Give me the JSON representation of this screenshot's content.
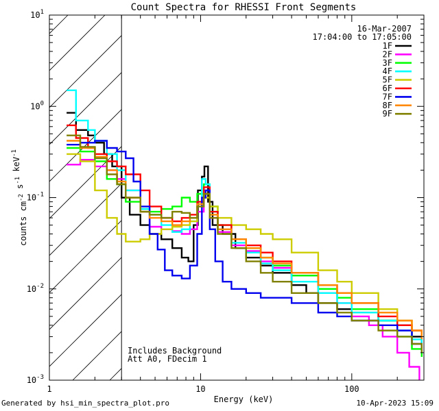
{
  "chart_data": {
    "type": "line",
    "title": "Count Spectra for RHESSI Front Segments",
    "xlabel": "Energy (keV)",
    "ylabel": "counts cm-2 s-1 keV-1",
    "xscale": "log",
    "yscale": "log",
    "xlim": [
      1,
      300
    ],
    "ylim": [
      0.001,
      10
    ],
    "x_ticks": [
      {
        "value": 1,
        "label": "1"
      },
      {
        "value": 10,
        "label": "10"
      },
      {
        "value": 100,
        "label": "100"
      }
    ],
    "y_ticks": [
      {
        "value": 0.001,
        "mantissa": "10",
        "exp": "-3"
      },
      {
        "value": 0.01,
        "mantissa": "10",
        "exp": "-2"
      },
      {
        "value": 0.1,
        "mantissa": "10",
        "exp": "-1"
      },
      {
        "value": 1,
        "mantissa": "10",
        "exp": "0"
      },
      {
        "value": 10,
        "mantissa": "10",
        "exp": "1"
      }
    ],
    "date_label": "16-Mar-2007",
    "time_range_label": "17:04:00 to 17:05:00",
    "annotation_lines": [
      "Includes Background",
      "Att A0, FDecim 1"
    ],
    "hatched_region_max_energy": 3,
    "series": [
      {
        "name": "1F",
        "color": "#000000",
        "points": [
          [
            1.3,
            0.85
          ],
          [
            1.5,
            0.55
          ],
          [
            1.8,
            0.48
          ],
          [
            2,
            0.4
          ],
          [
            2.3,
            0.3
          ],
          [
            2.6,
            0.22
          ],
          [
            3,
            0.1
          ],
          [
            3.4,
            0.065
          ],
          [
            4,
            0.05
          ],
          [
            4.6,
            0.04
          ],
          [
            5.5,
            0.035
          ],
          [
            6.5,
            0.028
          ],
          [
            7.5,
            0.022
          ],
          [
            8.3,
            0.02
          ],
          [
            9,
            0.05
          ],
          [
            9.6,
            0.12
          ],
          [
            10.2,
            0.17
          ],
          [
            10.6,
            0.22
          ],
          [
            11.2,
            0.09
          ],
          [
            12,
            0.05
          ],
          [
            14,
            0.04
          ],
          [
            17,
            0.028
          ],
          [
            20,
            0.022
          ],
          [
            25,
            0.018
          ],
          [
            30,
            0.015
          ],
          [
            40,
            0.011
          ],
          [
            50,
            0.009
          ],
          [
            60,
            0.007
          ],
          [
            80,
            0.006
          ],
          [
            100,
            0.0055
          ],
          [
            150,
            0.0045
          ],
          [
            200,
            0.004
          ],
          [
            250,
            0.003
          ],
          [
            290,
            0.0025
          ]
        ]
      },
      {
        "name": "2F",
        "color": "#ff00ff",
        "points": [
          [
            1.3,
            0.23
          ],
          [
            1.6,
            0.26
          ],
          [
            2,
            0.22
          ],
          [
            2.4,
            0.2
          ],
          [
            2.8,
            0.16
          ],
          [
            3.2,
            0.12
          ],
          [
            4,
            0.07
          ],
          [
            4.6,
            0.048
          ],
          [
            5.5,
            0.045
          ],
          [
            6.5,
            0.043
          ],
          [
            7.5,
            0.04
          ],
          [
            8.5,
            0.045
          ],
          [
            9.5,
            0.07
          ],
          [
            10.5,
            0.12
          ],
          [
            11.5,
            0.06
          ],
          [
            13,
            0.042
          ],
          [
            16,
            0.03
          ],
          [
            20,
            0.026
          ],
          [
            25,
            0.02
          ],
          [
            30,
            0.017
          ],
          [
            40,
            0.014
          ],
          [
            60,
            0.009
          ],
          [
            80,
            0.007
          ],
          [
            100,
            0.005
          ],
          [
            130,
            0.004
          ],
          [
            160,
            0.003
          ],
          [
            200,
            0.002
          ],
          [
            240,
            0.0014
          ],
          [
            280,
            0.001
          ]
        ]
      },
      {
        "name": "3F",
        "color": "#00ff00",
        "points": [
          [
            1.3,
            0.35
          ],
          [
            1.6,
            0.32
          ],
          [
            2,
            0.25
          ],
          [
            2.4,
            0.16
          ],
          [
            2.8,
            0.14
          ],
          [
            3.2,
            0.09
          ],
          [
            4,
            0.075
          ],
          [
            4.6,
            0.07
          ],
          [
            5.5,
            0.075
          ],
          [
            6.5,
            0.08
          ],
          [
            7.5,
            0.1
          ],
          [
            8.5,
            0.09
          ],
          [
            9.5,
            0.11
          ],
          [
            10.5,
            0.14
          ],
          [
            11.5,
            0.08
          ],
          [
            13,
            0.05
          ],
          [
            16,
            0.035
          ],
          [
            20,
            0.028
          ],
          [
            25,
            0.022
          ],
          [
            30,
            0.018
          ],
          [
            40,
            0.014
          ],
          [
            60,
            0.01
          ],
          [
            80,
            0.008
          ],
          [
            100,
            0.006
          ],
          [
            150,
            0.0045
          ],
          [
            200,
            0.003
          ],
          [
            250,
            0.0022
          ],
          [
            290,
            0.0018
          ]
        ]
      },
      {
        "name": "4F",
        "color": "#00ffff",
        "points": [
          [
            1.3,
            1.5
          ],
          [
            1.5,
            0.7
          ],
          [
            1.8,
            0.55
          ],
          [
            2,
            0.42
          ],
          [
            2.4,
            0.3
          ],
          [
            2.8,
            0.2
          ],
          [
            3.2,
            0.12
          ],
          [
            4,
            0.075
          ],
          [
            4.6,
            0.065
          ],
          [
            5.5,
            0.05
          ],
          [
            6.5,
            0.042
          ],
          [
            7.5,
            0.045
          ],
          [
            8.5,
            0.055
          ],
          [
            9.5,
            0.09
          ],
          [
            10.2,
            0.16
          ],
          [
            10.8,
            0.14
          ],
          [
            11.5,
            0.07
          ],
          [
            13,
            0.045
          ],
          [
            16,
            0.032
          ],
          [
            20,
            0.025
          ],
          [
            25,
            0.019
          ],
          [
            30,
            0.016
          ],
          [
            40,
            0.012
          ],
          [
            60,
            0.009
          ],
          [
            80,
            0.007
          ],
          [
            100,
            0.0055
          ],
          [
            150,
            0.0045
          ],
          [
            200,
            0.0035
          ],
          [
            250,
            0.0028
          ],
          [
            290,
            0.0022
          ]
        ]
      },
      {
        "name": "5F",
        "color": "#cccc00",
        "points": [
          [
            1.3,
            0.3
          ],
          [
            1.6,
            0.25
          ],
          [
            2,
            0.12
          ],
          [
            2.4,
            0.06
          ],
          [
            2.8,
            0.04
          ],
          [
            3.2,
            0.033
          ],
          [
            4,
            0.035
          ],
          [
            4.6,
            0.04
          ],
          [
            5.5,
            0.045
          ],
          [
            6.5,
            0.048
          ],
          [
            7.5,
            0.05
          ],
          [
            8.5,
            0.055
          ],
          [
            9.5,
            0.08
          ],
          [
            10.5,
            0.1
          ],
          [
            11.5,
            0.08
          ],
          [
            13,
            0.06
          ],
          [
            16,
            0.05
          ],
          [
            20,
            0.045
          ],
          [
            25,
            0.04
          ],
          [
            30,
            0.035
          ],
          [
            40,
            0.025
          ],
          [
            60,
            0.016
          ],
          [
            80,
            0.012
          ],
          [
            100,
            0.009
          ],
          [
            150,
            0.006
          ],
          [
            200,
            0.0045
          ],
          [
            250,
            0.0035
          ],
          [
            290,
            0.003
          ]
        ]
      },
      {
        "name": "6F",
        "color": "#ff0000",
        "points": [
          [
            1.3,
            0.62
          ],
          [
            1.5,
            0.45
          ],
          [
            1.8,
            0.35
          ],
          [
            2,
            0.3
          ],
          [
            2.4,
            0.25
          ],
          [
            2.8,
            0.22
          ],
          [
            3.2,
            0.18
          ],
          [
            4,
            0.12
          ],
          [
            4.6,
            0.08
          ],
          [
            5.5,
            0.06
          ],
          [
            6.5,
            0.055
          ],
          [
            7.5,
            0.06
          ],
          [
            8.5,
            0.065
          ],
          [
            9.5,
            0.09
          ],
          [
            10.5,
            0.13
          ],
          [
            11.5,
            0.07
          ],
          [
            13,
            0.05
          ],
          [
            16,
            0.035
          ],
          [
            20,
            0.03
          ],
          [
            25,
            0.025
          ],
          [
            30,
            0.02
          ],
          [
            40,
            0.015
          ],
          [
            60,
            0.011
          ],
          [
            80,
            0.009
          ],
          [
            100,
            0.007
          ],
          [
            150,
            0.005
          ],
          [
            200,
            0.004
          ],
          [
            250,
            0.0035
          ],
          [
            290,
            0.003
          ]
        ]
      },
      {
        "name": "7F",
        "color": "#0000ee",
        "points": [
          [
            1.3,
            0.38
          ],
          [
            1.6,
            0.4
          ],
          [
            2,
            0.42
          ],
          [
            2.4,
            0.35
          ],
          [
            2.8,
            0.32
          ],
          [
            3.2,
            0.27
          ],
          [
            3.6,
            0.15
          ],
          [
            4,
            0.08
          ],
          [
            4.6,
            0.04
          ],
          [
            5.2,
            0.027
          ],
          [
            5.8,
            0.016
          ],
          [
            6.5,
            0.014
          ],
          [
            7.5,
            0.013
          ],
          [
            8.5,
            0.018
          ],
          [
            9.5,
            0.04
          ],
          [
            10.2,
            0.1
          ],
          [
            10.8,
            0.12
          ],
          [
            11.5,
            0.045
          ],
          [
            12.5,
            0.02
          ],
          [
            14,
            0.012
          ],
          [
            16,
            0.01
          ],
          [
            20,
            0.009
          ],
          [
            25,
            0.008
          ],
          [
            30,
            0.008
          ],
          [
            40,
            0.007
          ],
          [
            60,
            0.0055
          ],
          [
            80,
            0.005
          ],
          [
            100,
            0.0045
          ],
          [
            150,
            0.004
          ],
          [
            200,
            0.0035
          ],
          [
            250,
            0.0025
          ],
          [
            290,
            0.002
          ]
        ]
      },
      {
        "name": "8F",
        "color": "#ff8800",
        "points": [
          [
            1.3,
            0.42
          ],
          [
            1.6,
            0.35
          ],
          [
            2,
            0.28
          ],
          [
            2.4,
            0.2
          ],
          [
            2.8,
            0.15
          ],
          [
            3.2,
            0.1
          ],
          [
            4,
            0.07
          ],
          [
            4.6,
            0.06
          ],
          [
            5.5,
            0.055
          ],
          [
            6.5,
            0.05
          ],
          [
            7.5,
            0.055
          ],
          [
            8.5,
            0.06
          ],
          [
            9.5,
            0.085
          ],
          [
            10.5,
            0.11
          ],
          [
            11.5,
            0.065
          ],
          [
            13,
            0.045
          ],
          [
            16,
            0.035
          ],
          [
            20,
            0.028
          ],
          [
            25,
            0.022
          ],
          [
            30,
            0.019
          ],
          [
            40,
            0.015
          ],
          [
            60,
            0.011
          ],
          [
            80,
            0.009
          ],
          [
            100,
            0.007
          ],
          [
            150,
            0.0055
          ],
          [
            200,
            0.0045
          ],
          [
            250,
            0.0035
          ],
          [
            290,
            0.0028
          ]
        ]
      },
      {
        "name": "9F",
        "color": "#808000",
        "points": [
          [
            1.3,
            0.48
          ],
          [
            1.6,
            0.36
          ],
          [
            2,
            0.27
          ],
          [
            2.4,
            0.18
          ],
          [
            2.8,
            0.14
          ],
          [
            3.2,
            0.1
          ],
          [
            4,
            0.07
          ],
          [
            4.6,
            0.065
          ],
          [
            5.5,
            0.06
          ],
          [
            6.5,
            0.07
          ],
          [
            7.5,
            0.068
          ],
          [
            8.5,
            0.06
          ],
          [
            9.5,
            0.08
          ],
          [
            10.5,
            0.11
          ],
          [
            11.5,
            0.06
          ],
          [
            13,
            0.04
          ],
          [
            16,
            0.028
          ],
          [
            20,
            0.02
          ],
          [
            25,
            0.015
          ],
          [
            30,
            0.012
          ],
          [
            40,
            0.009
          ],
          [
            60,
            0.007
          ],
          [
            80,
            0.0055
          ],
          [
            100,
            0.0045
          ],
          [
            150,
            0.0035
          ],
          [
            200,
            0.003
          ],
          [
            250,
            0.0025
          ],
          [
            290,
            0.002
          ]
        ]
      }
    ]
  },
  "footer": {
    "generated_by": "Generated by hsi_min_spectra_plot.pro",
    "timestamp": "10-Apr-2023 15:09"
  }
}
